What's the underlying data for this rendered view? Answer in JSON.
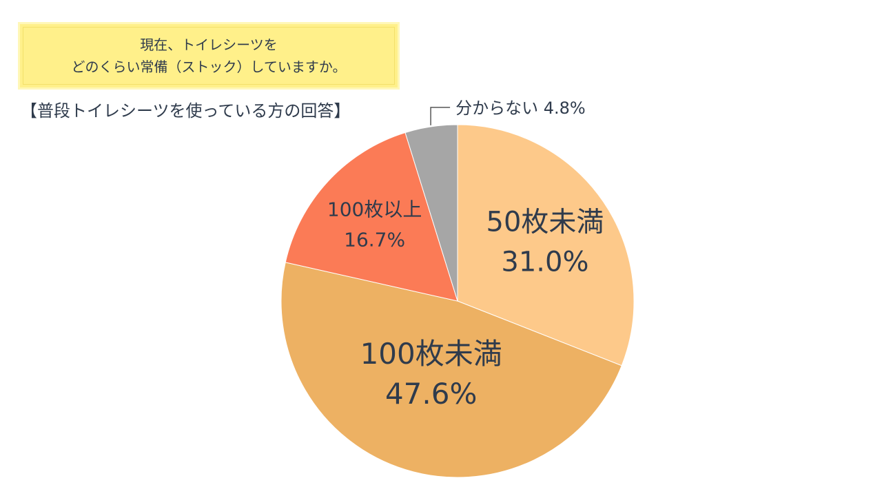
{
  "question": {
    "line1": "現在、トイレシーツを",
    "line2": "どのくらい常備（ストック）していますか。"
  },
  "subtitle": "【普段トイレシーツを使っている方の回答】",
  "chart_data": {
    "type": "pie",
    "start_angle_deg": 0,
    "direction": "clockwise",
    "slices": [
      {
        "label": "50枚未満",
        "value": 31.0,
        "value_label": "31.0%",
        "color": "#fdc98a"
      },
      {
        "label": "100枚未満",
        "value": 47.6,
        "value_label": "47.6%",
        "color": "#edb163"
      },
      {
        "label": "100枚以上",
        "value": 16.7,
        "value_label": "16.7%",
        "color": "#fb7b56"
      },
      {
        "label": "分からない",
        "value": 4.8,
        "value_label": "4.8%",
        "color": "#a6a6a6"
      }
    ],
    "external_label": "分からない 4.8%"
  }
}
